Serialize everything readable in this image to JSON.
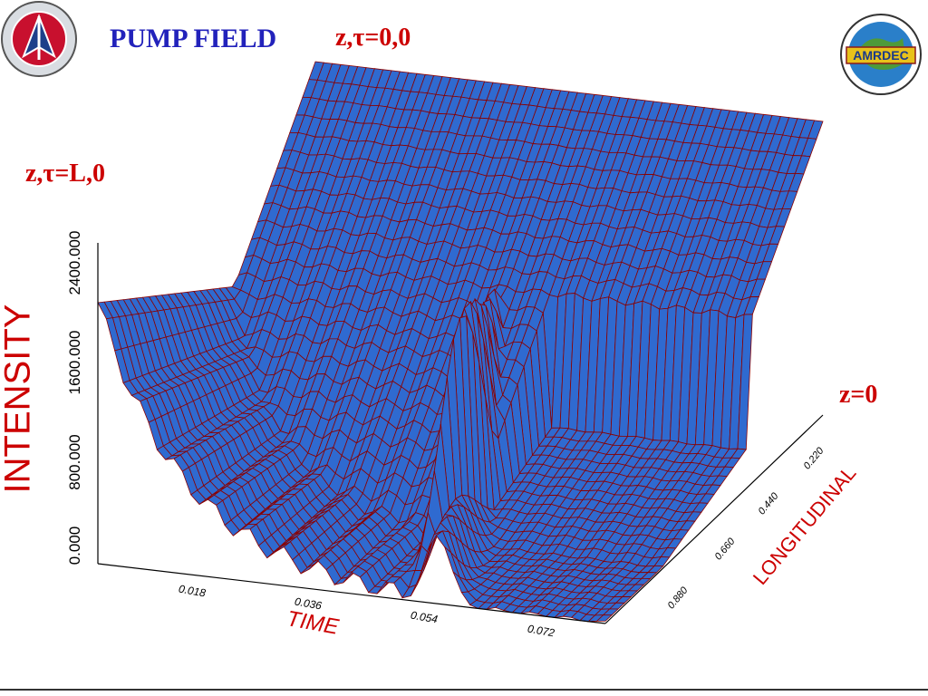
{
  "slide": {
    "title": "PUMP FIELD",
    "corner_top": "z,τ=0,0",
    "corner_left": "z,τ=L,0",
    "corner_right": "z=0"
  },
  "colors": {
    "surface_fill": "#2f6ad0",
    "mesh_line": "#8a0000",
    "title": "#2222bb",
    "labels": "#cc0000"
  },
  "logos": {
    "left": "army-tradition-of-excellence-seal",
    "right": "amrdec-aviation-missile-seal",
    "right_text": "AMRDEC"
  },
  "chart_data": {
    "type": "surface3d",
    "title": "",
    "xlabel": "TIME",
    "ylabel": "INTENSITY",
    "zlabel": "LONGITUDINAL",
    "x_ticks": [
      "0.018",
      "0.036",
      "0.054",
      "0.072"
    ],
    "y_ticks": [
      "0.000",
      "800.000",
      "1600.000",
      "2400.000"
    ],
    "z_ticks": [
      "0.220",
      "0.440",
      "0.660",
      "0.880"
    ],
    "ylim": [
      0,
      2400
    ],
    "xlim": [
      0,
      0.09
    ],
    "zlim": [
      0,
      1.1
    ],
    "grid": false,
    "legend": "none"
  }
}
